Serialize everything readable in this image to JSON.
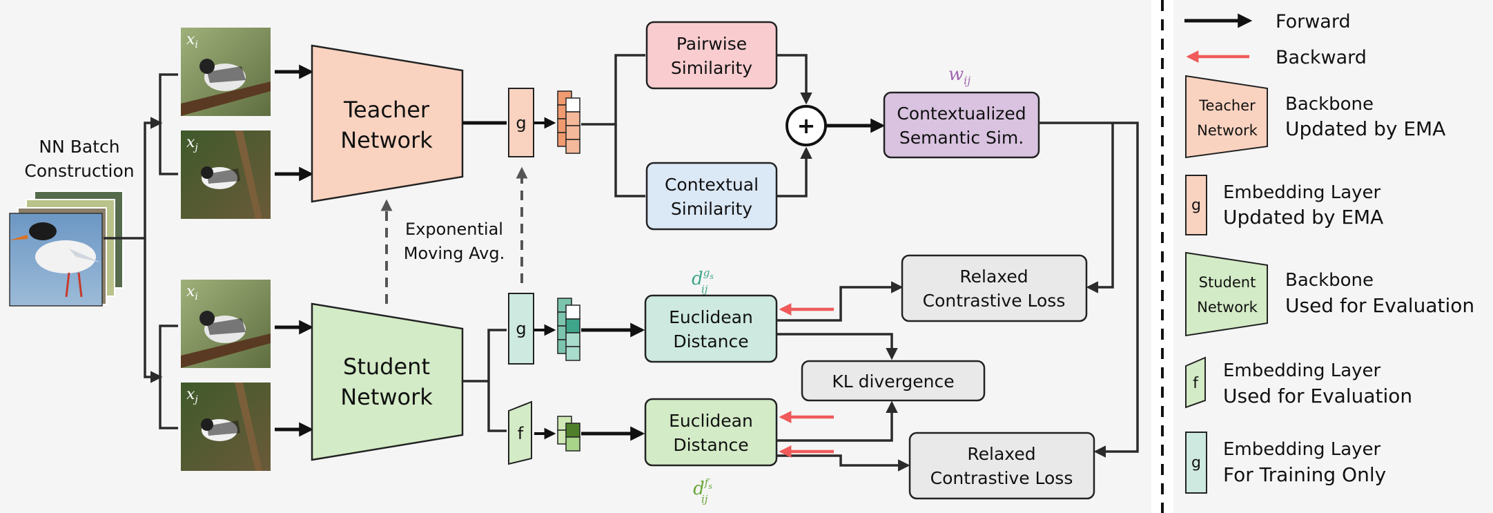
{
  "batch_label": [
    "NN Batch",
    "Construction"
  ],
  "image_labels": {
    "xi": "x",
    "xi_sub": "i",
    "xj": "x",
    "xj_sub": "j"
  },
  "teacher": [
    "Teacher",
    "Network"
  ],
  "student": [
    "Student",
    "Network"
  ],
  "ema": [
    "Exponential",
    "Moving Avg."
  ],
  "g": "g",
  "f": "f",
  "pairwise": [
    "Pairwise",
    "Similarity"
  ],
  "contextual": [
    "Contextual",
    "Similarity"
  ],
  "plus": "+",
  "w_label": {
    "base": "w",
    "sub": "ij"
  },
  "contextualized": [
    "Contextualized",
    "Semantic Sim."
  ],
  "dgs_label": {
    "base": "d",
    "sup": "g",
    "supsub": "s",
    "sub": "ij"
  },
  "dfs_label": {
    "base": "d",
    "sup": "f",
    "supsub": "s",
    "sub": "ij"
  },
  "euclid": [
    "Euclidean",
    "Distance"
  ],
  "relaxed": [
    "Relaxed",
    "Contrastive Loss"
  ],
  "kl": "KL divergence",
  "legend": {
    "forward": "Forward",
    "backward": "Backward",
    "teacher_box": [
      "Teacher",
      "Network"
    ],
    "teacher_desc": [
      "Backbone",
      "Updated by EMA"
    ],
    "teacher_emb_desc": [
      "Embedding Layer",
      "Updated by EMA"
    ],
    "student_box": [
      "Student",
      "Network"
    ],
    "student_desc": [
      "Backbone",
      "Used for Evaluation"
    ],
    "student_f_desc": [
      "Embedding Layer",
      "Used for Evaluation"
    ],
    "student_g_desc": [
      "Embedding Layer",
      "For Training Only"
    ]
  },
  "colors": {
    "teacher": "#f9d3c0",
    "student": "#d3ebc6",
    "g_student": "#cde9e0",
    "pairwise": "#f9cdd0",
    "contextual": "#dbe8f5",
    "contextualized": "#d9c3e0",
    "gray_box": "#e9e9e9",
    "backward": "#f05a5a",
    "w_label": "#a065b0",
    "dgs_label": "#3fa58a",
    "dfs_label": "#6aa63a"
  }
}
